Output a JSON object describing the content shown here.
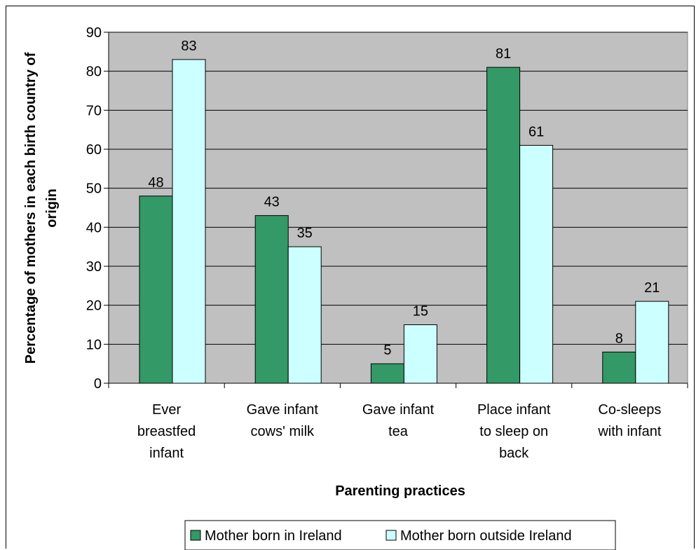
{
  "chart_data": {
    "type": "bar",
    "categories": [
      [
        "Ever",
        "breastfed",
        "infant"
      ],
      [
        "Gave infant",
        "cows' milk"
      ],
      [
        "Gave infant",
        "tea"
      ],
      [
        "Place infant",
        "to sleep on",
        "back"
      ],
      [
        "Co-sleeps",
        "with infant"
      ]
    ],
    "series": [
      {
        "name": "Mother born in Ireland",
        "values": [
          48,
          43,
          5,
          81,
          8
        ],
        "color": "#339966"
      },
      {
        "name": "Mother born outside Ireland",
        "values": [
          83,
          35,
          15,
          61,
          21
        ],
        "color": "#CCFFFF"
      }
    ],
    "xlabel": "Parenting practices",
    "ylabel": [
      "Percentage of mothers in each birth country of",
      "origin"
    ],
    "ylim": [
      0,
      90
    ],
    "yticks": [
      0,
      10,
      20,
      30,
      40,
      50,
      60,
      70,
      80,
      90
    ],
    "grid": true,
    "plot_background": "#C0C0C0",
    "legend_position": "bottom",
    "data_labels": true
  }
}
